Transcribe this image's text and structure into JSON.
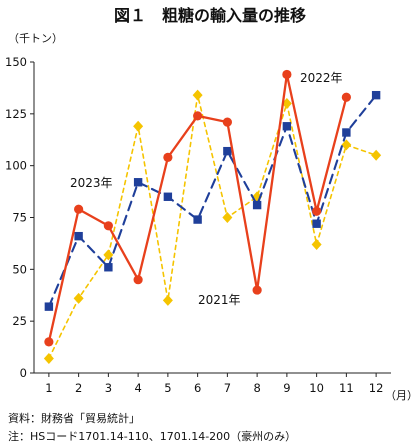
{
  "chart_data": {
    "type": "line",
    "title": "図１　粗糖の輸入量の推移",
    "ylabel": "（千トン）",
    "xlabel": "（月）",
    "x": [
      1,
      2,
      3,
      4,
      5,
      6,
      7,
      8,
      9,
      10,
      11,
      12
    ],
    "ylim": [
      0,
      150
    ],
    "yticks": [
      0,
      25,
      50,
      75,
      100,
      125,
      150
    ],
    "grid": false,
    "series": [
      {
        "name": "2021年",
        "color": "#f5c400",
        "line_style": "dashed",
        "marker": "diamond",
        "values": [
          7,
          36,
          57,
          119,
          35,
          134,
          75,
          85,
          130,
          62,
          110,
          105
        ]
      },
      {
        "name": "2022年",
        "color": "#1f3f9a",
        "line_style": "dashed",
        "marker": "square",
        "values": [
          32,
          66,
          51,
          92,
          85,
          74,
          107,
          81,
          119,
          72,
          116,
          134
        ]
      },
      {
        "name": "2023年",
        "color": "#e8401c",
        "line_style": "solid",
        "marker": "circle",
        "values": [
          15,
          79,
          71,
          45,
          104,
          124,
          121,
          40,
          144,
          78,
          133,
          null
        ]
      }
    ],
    "annotations": [
      {
        "text": "2022年",
        "series": "2022年"
      },
      {
        "text": "2023年",
        "series": "2023年"
      },
      {
        "text": "2021年",
        "series": "2021年"
      }
    ],
    "notes": [
      "資料：財務省「貿易統計」",
      "注：HSコード1701.14-110、1701.14-200（豪州のみ）"
    ]
  }
}
